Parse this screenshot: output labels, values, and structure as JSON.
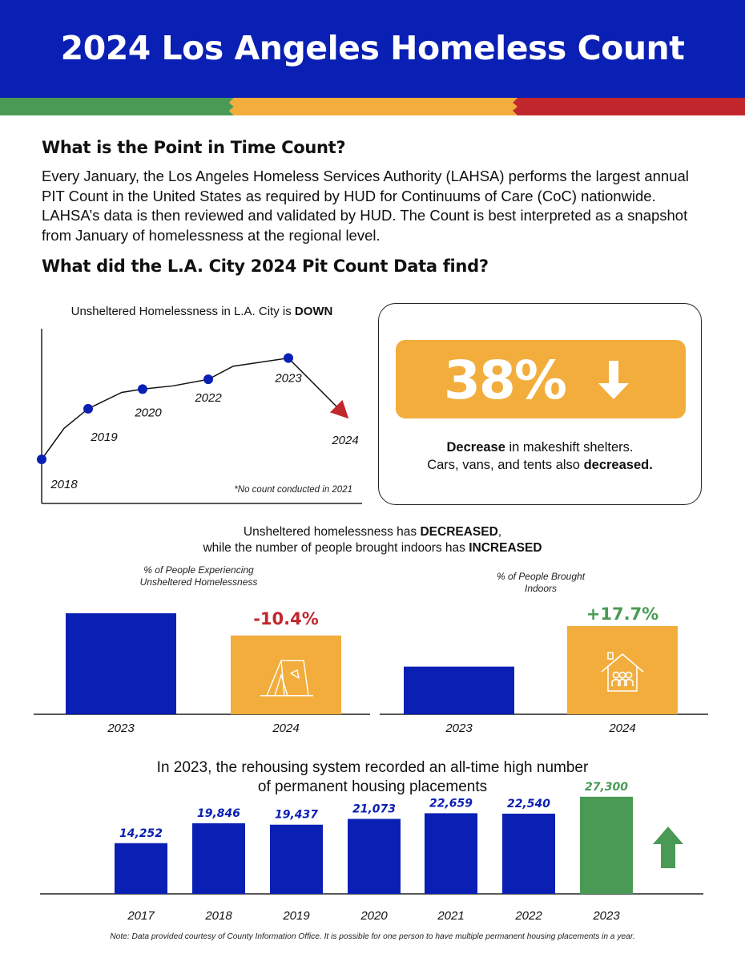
{
  "header": {
    "title": "2024 Los Angeles Homeless Count",
    "colors": {
      "blue": "#0a1fb3",
      "green": "#4a9a55",
      "yellow": "#f2ad3c",
      "red": "#c1272d"
    }
  },
  "intro": {
    "heading": "What is the Point in Time Count?",
    "body": "Every January, the Los Angeles Homeless Services Authority (LAHSA) performs the largest annual PIT Count in the United States as required by HUD for Continuums of Care (CoC) nationwide. LAHSA’s data is then reviewed and validated by HUD. The Count is best interpreted as a snapshot from January of homelessness at the regional level."
  },
  "findings": {
    "heading": "What did the L.A. City 2024 Pit Count Data find?"
  },
  "trend": {
    "title_prefix": "Unsheltered Homelessness in L.A. City is ",
    "title_emph": "DOWN",
    "footnote": "*No count conducted in 2021"
  },
  "stat": {
    "value": "38%",
    "line1_emph": "Decrease",
    "line1_rest": " in makeshift shelters.",
    "line2_prefix": "Cars, vans, and tents also ",
    "line2_emph": "decreased."
  },
  "comparison": {
    "title_l1_prefix": "Unsheltered homelessness has ",
    "title_l1_emph": "DECREASED",
    "title_l1_suffix": ",",
    "title_l2_prefix": "while the number of people brought indoors has ",
    "title_l2_emph": "INCREASED",
    "left_caption": "% of People Experiencing Unsheltered Homelessness",
    "left_change": "-10.4%",
    "right_caption": "% of People Brought Indoors",
    "right_change": "+17.7%"
  },
  "placements": {
    "title_l1": "In 2023, the rehousing system recorded an all-time high number",
    "title_l2": "of permanent housing placements"
  },
  "note": "Note: Data provided courtesy of County Information Office. It is possible for one person to have multiple permanent housing placements in a year.",
  "chart_data": [
    {
      "type": "line",
      "x": [
        "2018",
        "",
        "2019",
        "",
        "2020",
        "",
        "2022",
        "",
        "2023",
        "2024"
      ],
      "labeled_years": [
        "2018",
        "2019",
        "2020",
        "2022",
        "2023",
        "2024"
      ],
      "values": [
        0.0,
        0.19,
        0.31,
        0.41,
        0.43,
        0.45,
        0.49,
        0.57,
        0.62,
        0.27
      ],
      "markers": [
        0,
        2,
        4,
        6,
        8
      ],
      "arrow_at": 9,
      "ylim": [
        0,
        1
      ],
      "axis": "left-bottom"
    },
    {
      "type": "bar",
      "categories": [
        "2023",
        "2024"
      ],
      "values": [
        1.0,
        0.78
      ],
      "colors": [
        "#0a1fb3",
        "#f2ad3c"
      ],
      "icons": [
        "",
        "tent-icon"
      ],
      "ylim": [
        0,
        1.0
      ]
    },
    {
      "type": "bar",
      "categories": [
        "2023",
        "2024"
      ],
      "values": [
        0.54,
        1.0
      ],
      "colors": [
        "#0a1fb3",
        "#f2ad3c"
      ],
      "icons": [
        "",
        "house-icon"
      ],
      "ylim": [
        0,
        1.0
      ]
    },
    {
      "type": "bar",
      "categories": [
        "2017",
        "2018",
        "2019",
        "2020",
        "2021",
        "2022",
        "2023"
      ],
      "values": [
        14252,
        19846,
        19437,
        21073,
        22659,
        22540,
        27300
      ],
      "labels": [
        "14,252",
        "19,846",
        "19,437",
        "21,073",
        "22,659",
        "22,540",
        "27,300"
      ],
      "colors": [
        "#0a1fb3",
        "#0a1fb3",
        "#0a1fb3",
        "#0a1fb3",
        "#0a1fb3",
        "#0a1fb3",
        "#4a9a55"
      ],
      "ylim": [
        0,
        29000
      ]
    }
  ]
}
